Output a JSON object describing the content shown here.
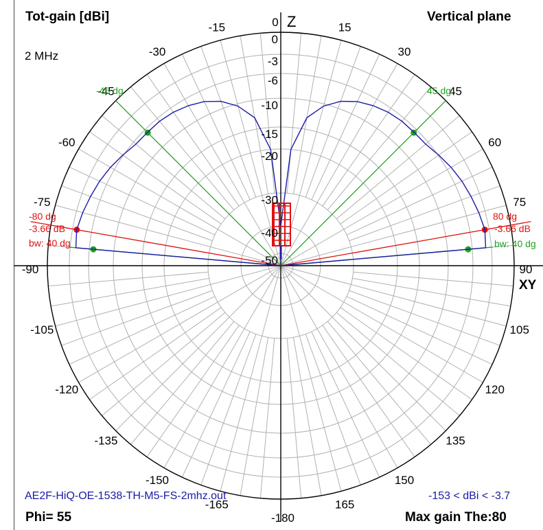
{
  "header": {
    "left_title": "Tot-gain [dBi]",
    "right_title": "Vertical plane",
    "frequency": "2 MHz"
  },
  "footer": {
    "filename": "AE2F-HiQ-OE-1538-TH-M5-FS-2mhz.out",
    "range": "-153 < dBi < -3.7",
    "phi": "Phi= 55",
    "max_gain": "Max gain The:80"
  },
  "colors": {
    "grid": "#b0b0b0",
    "axis": "#000000",
    "pattern": "#1a1aa8",
    "beamwidth": "#1fa11f",
    "max_marker": "#e01010"
  },
  "chart_data": {
    "type": "polar",
    "title": "Tot-gain [dBi]",
    "subtitle": "Vertical plane",
    "axis_labels": {
      "top": "Z",
      "right": "XY"
    },
    "angle_ticks": [
      {
        "angle": 0,
        "label": "0"
      },
      {
        "angle": 15,
        "label": "15"
      },
      {
        "angle": 30,
        "label": "30"
      },
      {
        "angle": 45,
        "label": "45"
      },
      {
        "angle": 60,
        "label": "60"
      },
      {
        "angle": 75,
        "label": "75"
      },
      {
        "angle": 90,
        "label": "90"
      },
      {
        "angle": 105,
        "label": "105"
      },
      {
        "angle": 120,
        "label": "120"
      },
      {
        "angle": 135,
        "label": "135"
      },
      {
        "angle": 150,
        "label": "150"
      },
      {
        "angle": 165,
        "label": "165"
      },
      {
        "angle": -180,
        "label": "-180"
      },
      {
        "angle": -165,
        "label": "-165"
      },
      {
        "angle": -150,
        "label": "-150"
      },
      {
        "angle": -135,
        "label": "-135"
      },
      {
        "angle": -120,
        "label": "-120"
      },
      {
        "angle": -105,
        "label": "-105"
      },
      {
        "angle": -90,
        "label": "-90"
      },
      {
        "angle": -75,
        "label": "-75"
      },
      {
        "angle": -60,
        "label": "-60"
      },
      {
        "angle": -45,
        "label": "-45"
      },
      {
        "angle": -30,
        "label": "-30"
      },
      {
        "angle": -15,
        "label": "-15"
      }
    ],
    "gain_rings": [
      0,
      -3,
      -6,
      -10,
      -15,
      -20,
      -30,
      -40,
      -50
    ],
    "ring_labels": [
      "0",
      "-3",
      "-6",
      "-10",
      "-15",
      "-20",
      "-30",
      "-40",
      "-50"
    ],
    "pattern": {
      "name": "Tot-gain",
      "points": [
        {
          "theta": 0,
          "gain": -40
        },
        {
          "theta": 5,
          "gain": -20
        },
        {
          "theta": 10,
          "gain": -13
        },
        {
          "theta": 15,
          "gain": -10.4
        },
        {
          "theta": 20,
          "gain": -8.8
        },
        {
          "theta": 25,
          "gain": -7.8
        },
        {
          "theta": 30,
          "gain": -7.2
        },
        {
          "theta": 35,
          "gain": -6.8
        },
        {
          "theta": 40,
          "gain": -6.6
        },
        {
          "theta": 45,
          "gain": -6.6
        },
        {
          "theta": 50,
          "gain": -6.5
        },
        {
          "theta": 55,
          "gain": -5.9
        },
        {
          "theta": 60,
          "gain": -5.3
        },
        {
          "theta": 65,
          "gain": -4.8
        },
        {
          "theta": 70,
          "gain": -4.4
        },
        {
          "theta": 75,
          "gain": -4.0
        },
        {
          "theta": 80,
          "gain": -3.66
        },
        {
          "theta": 85,
          "gain": -3.9
        },
        {
          "theta": 90,
          "gain": -60
        }
      ]
    },
    "max_marker": {
      "theta": 80,
      "gain": -3.66,
      "label_angle": "80 dg",
      "label_angle_neg": "-80 dg",
      "label_gain": "-3.66 dB"
    },
    "beamwidth": {
      "label": "bw: 40 dg",
      "edges": [
        {
          "theta": 45,
          "gain": -6.66,
          "label": "45 dg",
          "label_neg": "-45 dg"
        },
        {
          "theta": 85,
          "gain": -6.66
        }
      ]
    }
  }
}
